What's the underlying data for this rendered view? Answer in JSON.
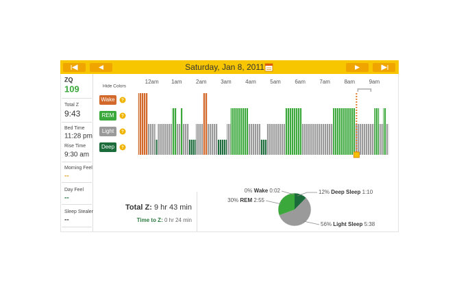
{
  "header": {
    "date": "Saturday, Jan 8, 2011"
  },
  "sidebar": {
    "zq_label": "ZQ",
    "zq": 109,
    "total_label": "Total Z",
    "total": "9:43",
    "bed_label": "Bed Time",
    "bed": "11:28 pm",
    "rise_label": "Rise Time",
    "rise": "9:30 am",
    "morning_label": "Morning Feel",
    "morning": "--",
    "day_label": "Day Feel",
    "day": "--",
    "stealer_label": "Sleep Stealer",
    "stealer": "--"
  },
  "legend": {
    "toggle": "Hide Colors"
  },
  "hypnogram": {
    "type": "timeline",
    "xlim": [
      -0.6,
      9.6
    ],
    "xticks": [
      {
        "value": 0,
        "label": "12am"
      },
      {
        "value": 1,
        "label": "1am"
      },
      {
        "value": 2,
        "label": "2am"
      },
      {
        "value": 3,
        "label": "3am"
      },
      {
        "value": 4,
        "label": "4am"
      },
      {
        "value": 5,
        "label": "5am"
      },
      {
        "value": 6,
        "label": "6am"
      },
      {
        "value": 7,
        "label": "7am"
      },
      {
        "value": 8,
        "label": "8am"
      },
      {
        "value": 9,
        "label": "9am"
      }
    ],
    "series": [
      {
        "name": "Wake",
        "color": "#d2692a",
        "intervals": [
          [
            -0.55,
            -0.17
          ],
          [
            2.06,
            2.25
          ]
        ]
      },
      {
        "name": "REM",
        "color": "#3aa83a",
        "intervals": [
          [
            0.81,
            1.0
          ],
          [
            1.17,
            1.25
          ],
          [
            3.19,
            3.89
          ],
          [
            5.39,
            6.06
          ],
          [
            7.33,
            8.22
          ],
          [
            9.0,
            9.19
          ],
          [
            9.36,
            9.47
          ]
        ]
      },
      {
        "name": "Light",
        "color": "#9a9a9a",
        "intervals": [
          [
            -0.17,
            0.14
          ],
          [
            0.22,
            0.81
          ],
          [
            1.0,
            1.17
          ],
          [
            1.25,
            1.5
          ],
          [
            1.78,
            2.06
          ],
          [
            2.25,
            2.67
          ],
          [
            3.03,
            3.19
          ],
          [
            3.89,
            4.39
          ],
          [
            4.64,
            5.39
          ],
          [
            6.06,
            7.33
          ],
          [
            8.22,
            9.0
          ],
          [
            9.19,
            9.36
          ],
          [
            9.47,
            9.58
          ]
        ]
      },
      {
        "name": "Deep",
        "color": "#1b6b3b",
        "intervals": [
          [
            0.14,
            0.22
          ],
          [
            1.5,
            1.78
          ],
          [
            2.67,
            3.03
          ],
          [
            4.39,
            4.64
          ]
        ]
      }
    ],
    "cursor": 8.28
  },
  "summary": {
    "total_label": "Total Z:",
    "total": "9 hr 43 min",
    "ttz_label": "Time to Z:",
    "ttz": "0 hr 24 min"
  },
  "pie": {
    "type": "pie",
    "categories": [
      "Wake",
      "Deep Sleep",
      "Light Sleep",
      "REM"
    ],
    "values": [
      0,
      12,
      56,
      30
    ],
    "value_labels": [
      "0%",
      "12%",
      "56%",
      "30%"
    ],
    "durations": [
      "0:02",
      "1:10",
      "5:38",
      "2:55"
    ],
    "colors": [
      "#d2692a",
      "#1b6b3b",
      "#9a9a9a",
      "#3aa83a"
    ]
  }
}
